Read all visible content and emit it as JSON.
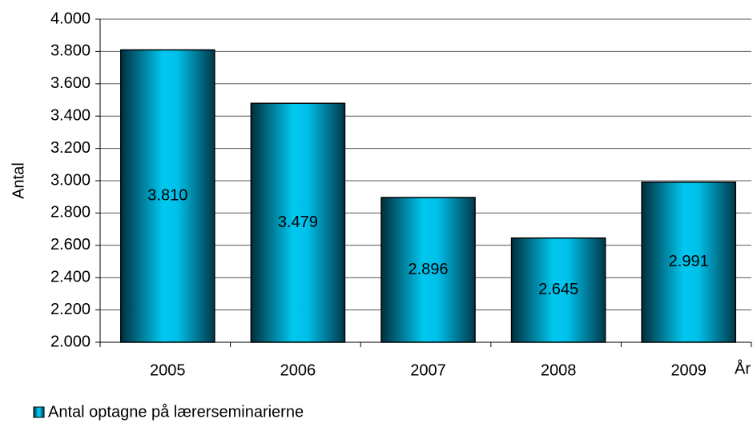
{
  "chart_data": {
    "type": "bar",
    "y_label": "Antal",
    "x_label": "År",
    "categories": [
      "2005",
      "2006",
      "2007",
      "2008",
      "2009"
    ],
    "series": [
      {
        "name": "Antal optagne på lærerseminarierne",
        "color": "#00c8f0",
        "values": [
          3810,
          3479,
          2896,
          2645,
          2991
        ],
        "value_labels": [
          "3.810",
          "3.479",
          "2.896",
          "2.645",
          "2.991"
        ]
      }
    ],
    "ylim": [
      2000,
      4000
    ],
    "yticks": [
      {
        "value": 2000,
        "label": "2.000"
      },
      {
        "value": 2200,
        "label": "2.200"
      },
      {
        "value": 2400,
        "label": "2.400"
      },
      {
        "value": 2600,
        "label": "2.600"
      },
      {
        "value": 2800,
        "label": "2.800"
      },
      {
        "value": 3000,
        "label": "3.000"
      },
      {
        "value": 3200,
        "label": "3.200"
      },
      {
        "value": 3400,
        "label": "3.400"
      },
      {
        "value": 3600,
        "label": "3.600"
      },
      {
        "value": 3800,
        "label": "3.800"
      },
      {
        "value": 4000,
        "label": "4.000"
      }
    ],
    "grid": true,
    "legend": "bottom-left"
  }
}
